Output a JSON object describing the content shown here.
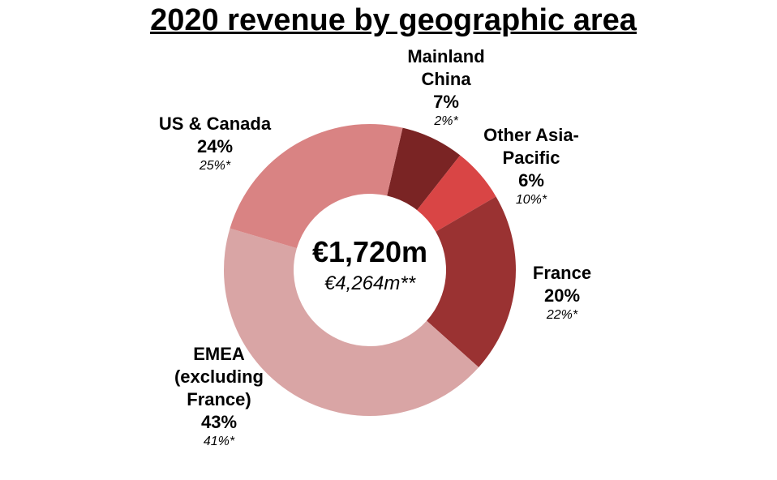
{
  "chart_data": {
    "type": "donut",
    "title": "2020 revenue by geographic area",
    "center_label": "€1,720m",
    "center_sublabel": "€4,264m**",
    "categories": [
      "Mainland\nChina",
      "Other Asia-\nPacific",
      "France",
      "EMEA\n(excluding\nFrance)",
      "US & Canada"
    ],
    "values": [
      7,
      6,
      20,
      43,
      24
    ],
    "value_labels": [
      "7%",
      "6%",
      "20%",
      "43%",
      "24%"
    ],
    "secondary_values": [
      2,
      10,
      22,
      41,
      25
    ],
    "secondary_value_labels": [
      "2%*",
      "10%*",
      "22%*",
      "41%*",
      "25%*"
    ],
    "colors": [
      "#7a2424",
      "#d94545",
      "#9a3232",
      "#d9a5a5",
      "#d98383"
    ]
  }
}
